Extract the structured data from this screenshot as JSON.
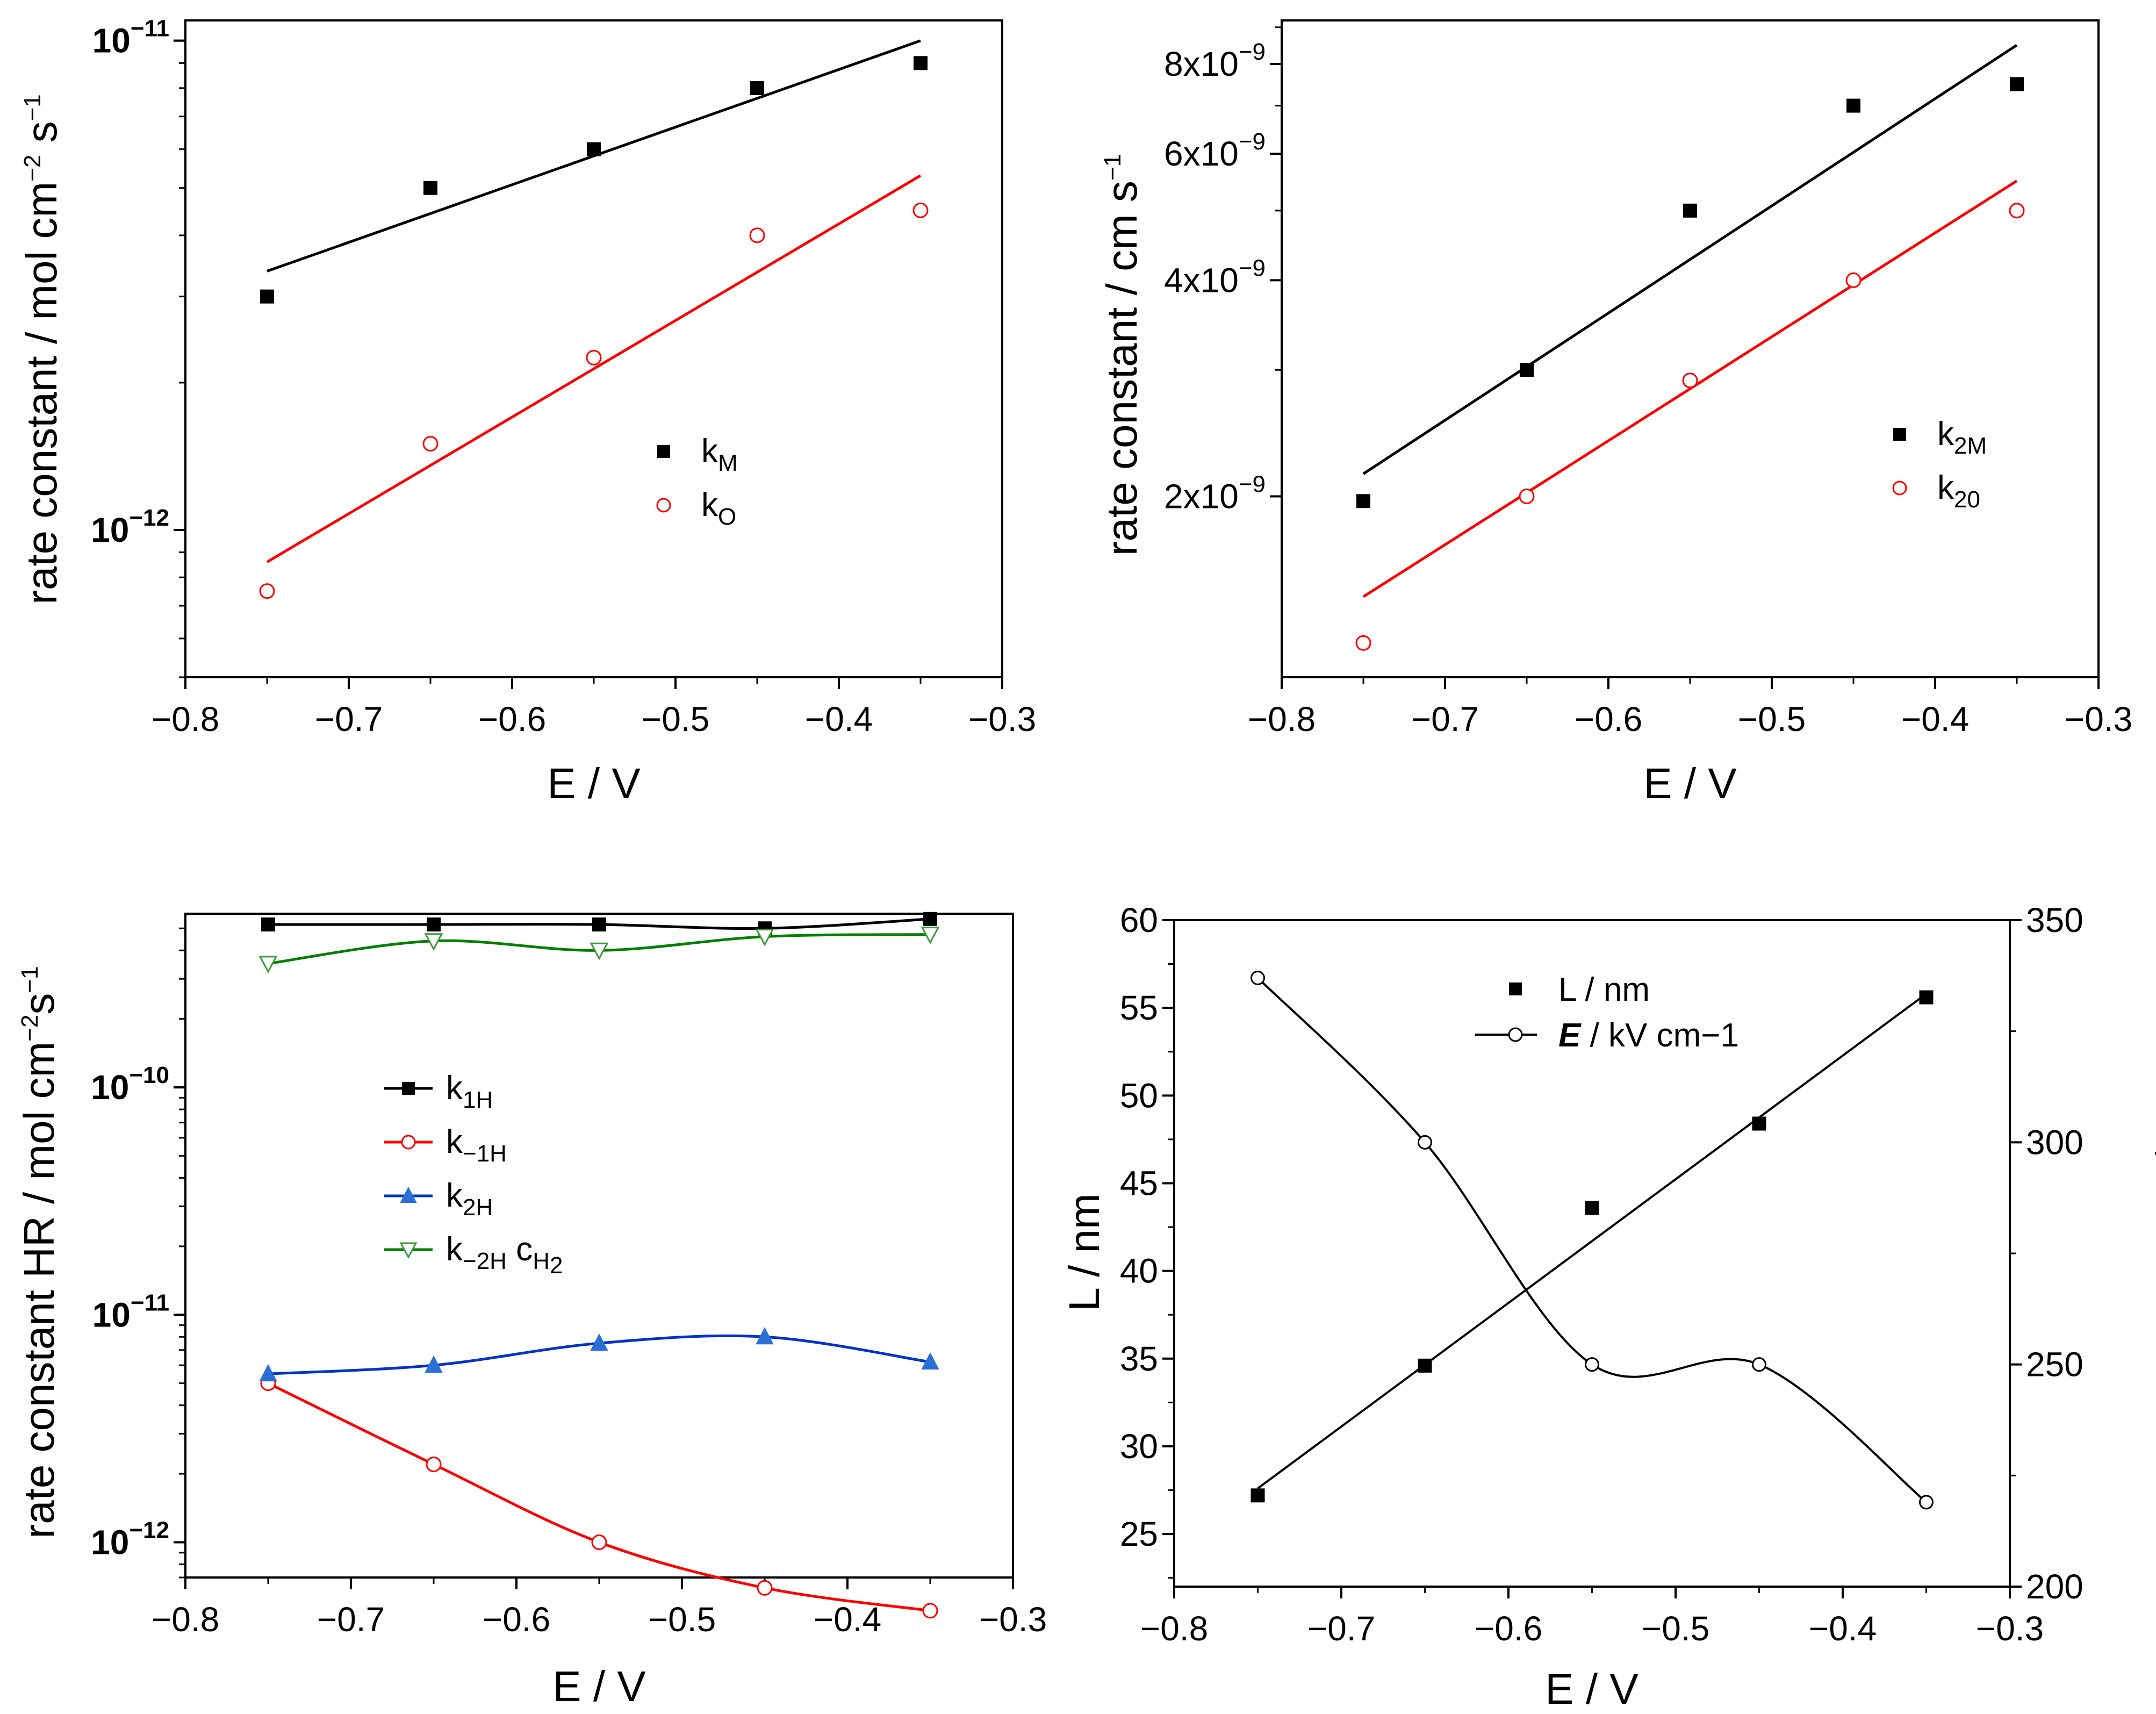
{
  "chart_data": [
    {
      "id": "A",
      "type": "scatter",
      "scale": "log",
      "xlabel": "E / V",
      "ylabel": "rate constant / mol cm−2 s−1",
      "xlim": [
        -0.8,
        -0.3
      ],
      "ylim": [
        5e-13,
        1.1e-11
      ],
      "xticks": [
        "−0.8",
        "−0.7",
        "−0.6",
        "−0.5",
        "−0.4",
        "−0.3"
      ],
      "yticks": [
        {
          "value": 1e-11,
          "base": "10",
          "exp": "−11"
        },
        {
          "value": 1e-12,
          "base": "10",
          "exp": "−12"
        }
      ],
      "series": [
        {
          "name": "k",
          "sub": "M",
          "color": "#000000",
          "marker": "square",
          "x": [
            -0.75,
            -0.65,
            -0.55,
            -0.45,
            -0.35
          ],
          "y": [
            3e-12,
            5e-12,
            6e-12,
            8e-12,
            9e-12
          ],
          "fit": [
            [
              -0.75,
              3.38e-12
            ],
            [
              -0.35,
              1e-11
            ]
          ]
        },
        {
          "name": "k",
          "sub": "O",
          "color": "#ff0000",
          "marker": "circle",
          "x": [
            -0.75,
            -0.65,
            -0.55,
            -0.45,
            -0.35
          ],
          "y": [
            7.5e-13,
            1.5e-12,
            2.25e-12,
            4e-12,
            4.5e-12
          ],
          "fit": [
            [
              -0.75,
              8.6e-13
            ],
            [
              -0.35,
              5.3e-12
            ]
          ]
        }
      ]
    },
    {
      "id": "B",
      "type": "scatter",
      "scale": "log",
      "xlabel": "E / V",
      "ylabel": "rate constant  / cm s−1",
      "xlim": [
        -0.8,
        -0.3
      ],
      "ylim": [
        1.12e-09,
        9.2e-09
      ],
      "xticks": [
        "−0.8",
        "−0.7",
        "−0.6",
        "−0.5",
        "−0.4",
        "−0.3"
      ],
      "yticks": [
        {
          "value": 2e-09,
          "base": "2x10",
          "exp": "−9"
        },
        {
          "value": 4e-09,
          "base": "4x10",
          "exp": "−9"
        },
        {
          "value": 6e-09,
          "base": "6x10",
          "exp": "−9"
        },
        {
          "value": 8e-09,
          "base": "8x10",
          "exp": "−9"
        }
      ],
      "series": [
        {
          "name": "k",
          "sub": "2M",
          "color": "#000000",
          "marker": "square",
          "x": [
            -0.75,
            -0.65,
            -0.55,
            -0.45,
            -0.35
          ],
          "y": [
            1.97e-09,
            3e-09,
            5e-09,
            7e-09,
            7.5e-09
          ],
          "fit": [
            [
              -0.75,
              2.15e-09
            ],
            [
              -0.35,
              8.5e-09
            ]
          ]
        },
        {
          "name": "k",
          "sub": "20",
          "color": "#ff0000",
          "marker": "circle",
          "x": [
            -0.75,
            -0.65,
            -0.55,
            -0.45,
            -0.35
          ],
          "y": [
            1.25e-09,
            2e-09,
            2.9e-09,
            4e-09,
            5e-09
          ],
          "fit": [
            [
              -0.75,
              1.45e-09
            ],
            [
              -0.35,
              5.5e-09
            ]
          ]
        }
      ]
    },
    {
      "id": "C",
      "type": "line",
      "scale": "log",
      "xlabel": "E / V",
      "ylabel": "rate constant HR / mol cm−2s−1",
      "xlim": [
        -0.8,
        -0.3
      ],
      "ylim": [
        7e-13,
        5.8e-10
      ],
      "xticks": [
        "−0.8",
        "−0.7",
        "−0.6",
        "−0.5",
        "−0.4",
        "−0.3"
      ],
      "yticks": [
        {
          "value": 1e-10,
          "base": "10",
          "exp": "−10"
        },
        {
          "value": 1e-11,
          "base": "10",
          "exp": "−11"
        },
        {
          "value": 1e-12,
          "base": "10",
          "exp": "−12"
        }
      ],
      "series": [
        {
          "name": "k",
          "sub": "1H",
          "color": "#000000",
          "marker": "square",
          "x": [
            -0.75,
            -0.65,
            -0.55,
            -0.45,
            -0.35
          ],
          "y": [
            5.2e-10,
            5.2e-10,
            5.2e-10,
            5e-10,
            5.5e-10
          ]
        },
        {
          "name": "k",
          "sub": "−1H",
          "color": "#ff0000",
          "marker": "circle",
          "x": [
            -0.75,
            -0.65,
            -0.55,
            -0.45,
            -0.35
          ],
          "y": [
            5e-12,
            2.2e-12,
            1e-12,
            6.3e-13,
            5e-13
          ]
        },
        {
          "name": "k",
          "sub": "2H",
          "color": "#0033cc",
          "marker": "triangle",
          "x": [
            -0.75,
            -0.65,
            -0.55,
            -0.45,
            -0.35
          ],
          "y": [
            5.5e-12,
            6e-12,
            7.5e-12,
            8e-12,
            6.2e-12
          ]
        },
        {
          "name": "k",
          "sub": "−2H",
          "extra": "c",
          "extra_sub": "H",
          "extra_sub2": "2",
          "color": "#008000",
          "marker": "triangle-down",
          "x": [
            -0.75,
            -0.65,
            -0.55,
            -0.45,
            -0.35
          ],
          "y": [
            3.5e-10,
            4.4e-10,
            4e-10,
            4.6e-10,
            4.7e-10
          ]
        }
      ]
    },
    {
      "id": "D",
      "type": "line",
      "scale": "linear",
      "xlabel": "E / V",
      "ylabel": "L / nm",
      "y2label_bold": "E",
      "y2label": " / kV cm−1",
      "xlim": [
        -0.8,
        -0.3
      ],
      "ylim": [
        22,
        60
      ],
      "y2lim": [
        200,
        350
      ],
      "xticks": [
        "−0.8",
        "−0.7",
        "−0.6",
        "−0.5",
        "−0.4",
        "−0.3"
      ],
      "yticks": [
        "25",
        "30",
        "35",
        "40",
        "45",
        "50",
        "55",
        "60"
      ],
      "y2ticks": [
        "200",
        "250",
        "300",
        "350"
      ],
      "series": [
        {
          "name": "L / nm",
          "color": "#000000",
          "marker": "square",
          "axis": "left",
          "x": [
            -0.75,
            -0.65,
            -0.55,
            -0.45,
            -0.35
          ],
          "y": [
            27.2,
            34.6,
            43.6,
            48.4,
            55.6
          ],
          "fit": [
            [
              -0.75,
              27.6
            ],
            [
              -0.35,
              55.8
            ]
          ]
        },
        {
          "name": " / kV cm−1",
          "name_bold": "E",
          "color": "#000000",
          "marker": "circle",
          "axis": "right",
          "x": [
            -0.75,
            -0.65,
            -0.55,
            -0.45,
            -0.35
          ],
          "y": [
            337,
            300,
            250,
            250,
            219
          ]
        }
      ]
    }
  ]
}
